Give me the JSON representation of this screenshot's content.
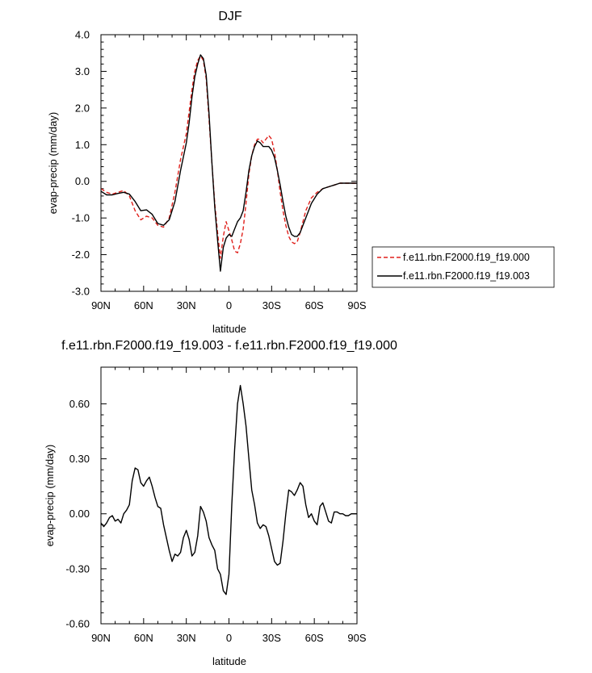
{
  "chart_data": [
    {
      "type": "line",
      "title": "DJF",
      "xlabel": "latitude",
      "ylabel": "evap-precip (mm/day)",
      "xlim": [
        90,
        -90
      ],
      "ylim": [
        -3.0,
        4.0
      ],
      "xticks": [
        {
          "value": 90,
          "label": "90N"
        },
        {
          "value": 60,
          "label": "60N"
        },
        {
          "value": 30,
          "label": "30N"
        },
        {
          "value": 0,
          "label": "0"
        },
        {
          "value": -30,
          "label": "30S"
        },
        {
          "value": -60,
          "label": "60S"
        },
        {
          "value": -90,
          "label": "90S"
        }
      ],
      "yticks": [
        {
          "value": 4.0,
          "label": "4.0"
        },
        {
          "value": 3.0,
          "label": "3.0"
        },
        {
          "value": 2.0,
          "label": "2.0"
        },
        {
          "value": 1.0,
          "label": "1.0"
        },
        {
          "value": 0.0,
          "label": "0.0"
        },
        {
          "value": -1.0,
          "label": "-1.0"
        },
        {
          "value": -2.0,
          "label": "-2.0"
        },
        {
          "value": -3.0,
          "label": "-3.0"
        }
      ],
      "legend_position": "right",
      "series": [
        {
          "name": "f.e11.rbn.F2000.f19_f19.000",
          "color": "#e0201b",
          "dash": "dashed",
          "x": [
            90,
            86,
            82,
            78,
            74,
            70,
            66,
            62,
            58,
            54,
            50,
            46,
            42,
            38,
            34,
            30,
            28,
            26,
            24,
            22,
            20,
            18,
            16,
            14,
            12,
            10,
            8,
            6,
            4,
            2,
            0,
            -2,
            -4,
            -6,
            -8,
            -10,
            -12,
            -14,
            -16,
            -18,
            -20,
            -22,
            -24,
            -26,
            -28,
            -30,
            -32,
            -34,
            -36,
            -38,
            -40,
            -42,
            -44,
            -46,
            -48,
            -50,
            -54,
            -58,
            -62,
            -66,
            -70,
            -74,
            -78,
            -82,
            -86,
            -90
          ],
          "y": [
            -0.2,
            -0.3,
            -0.35,
            -0.3,
            -0.25,
            -0.4,
            -0.8,
            -1.05,
            -0.95,
            -1.0,
            -1.2,
            -1.25,
            -1.0,
            -0.3,
            0.6,
            1.3,
            1.9,
            2.5,
            3.0,
            3.3,
            3.42,
            3.3,
            2.8,
            1.7,
            0.5,
            -0.6,
            -1.4,
            -2.1,
            -1.5,
            -1.1,
            -1.35,
            -1.6,
            -1.9,
            -1.95,
            -1.7,
            -1.3,
            -0.6,
            0.2,
            0.7,
            1.0,
            1.15,
            1.15,
            1.05,
            1.15,
            1.25,
            1.15,
            0.8,
            0.3,
            -0.3,
            -0.8,
            -1.2,
            -1.5,
            -1.65,
            -1.7,
            -1.65,
            -1.4,
            -0.8,
            -0.45,
            -0.3,
            -0.2,
            -0.15,
            -0.1,
            -0.05,
            -0.05,
            -0.05,
            -0.05
          ]
        },
        {
          "name": "f.e11.rbn.F2000.f19_f19.003",
          "color": "#000000",
          "dash": "solid",
          "x": [
            90,
            86,
            82,
            78,
            74,
            70,
            66,
            62,
            58,
            54,
            50,
            46,
            42,
            38,
            34,
            30,
            28,
            26,
            24,
            22,
            20,
            18,
            16,
            14,
            12,
            10,
            8,
            6,
            4,
            2,
            0,
            -2,
            -4,
            -6,
            -8,
            -10,
            -12,
            -14,
            -16,
            -18,
            -20,
            -22,
            -24,
            -26,
            -28,
            -30,
            -32,
            -34,
            -36,
            -38,
            -40,
            -42,
            -44,
            -46,
            -48,
            -50,
            -54,
            -58,
            -62,
            -66,
            -70,
            -74,
            -78,
            -82,
            -86,
            -90
          ],
          "y": [
            -0.27,
            -0.37,
            -0.37,
            -0.33,
            -0.3,
            -0.35,
            -0.55,
            -0.8,
            -0.78,
            -0.9,
            -1.15,
            -1.2,
            -1.05,
            -0.55,
            0.3,
            1.05,
            1.6,
            2.3,
            2.85,
            3.2,
            3.45,
            3.35,
            2.9,
            1.85,
            0.5,
            -0.7,
            -1.6,
            -2.45,
            -1.8,
            -1.55,
            -1.45,
            -1.5,
            -1.3,
            -1.1,
            -1.0,
            -0.8,
            -0.3,
            0.3,
            0.7,
            0.95,
            1.1,
            1.05,
            0.95,
            0.95,
            0.95,
            0.85,
            0.65,
            0.3,
            -0.1,
            -0.55,
            -0.95,
            -1.25,
            -1.45,
            -1.5,
            -1.5,
            -1.4,
            -1.0,
            -0.6,
            -0.35,
            -0.2,
            -0.15,
            -0.1,
            -0.05,
            -0.05,
            -0.05,
            -0.05
          ]
        }
      ]
    },
    {
      "type": "line",
      "title": "f.e11.rbn.F2000.f19_f19.003 - f.e11.rbn.F2000.f19_f19.000",
      "xlabel": "latitude",
      "ylabel": "evap-precip (mm/day)",
      "xlim": [
        90,
        -90
      ],
      "ylim": [
        -0.6,
        0.8
      ],
      "xticks": [
        {
          "value": 90,
          "label": "90N"
        },
        {
          "value": 60,
          "label": "60N"
        },
        {
          "value": 30,
          "label": "30N"
        },
        {
          "value": 0,
          "label": "0"
        },
        {
          "value": -30,
          "label": "30S"
        },
        {
          "value": -60,
          "label": "60S"
        },
        {
          "value": -90,
          "label": "90S"
        }
      ],
      "yticks": [
        {
          "value": 0.6,
          "label": "0.60"
        },
        {
          "value": 0.3,
          "label": "0.30"
        },
        {
          "value": 0.0,
          "label": "0.00"
        },
        {
          "value": -0.3,
          "label": "-0.30"
        },
        {
          "value": -0.6,
          "label": "-0.60"
        }
      ],
      "series": [
        {
          "color": "#000000",
          "dash": "solid",
          "x": [
            90,
            88,
            86,
            84,
            82,
            80,
            78,
            76,
            74,
            72,
            70,
            68,
            66,
            64,
            62,
            60,
            58,
            56,
            54,
            52,
            50,
            48,
            46,
            44,
            42,
            40,
            38,
            36,
            34,
            32,
            30,
            28,
            26,
            24,
            22,
            20,
            18,
            16,
            14,
            12,
            10,
            8,
            6,
            4,
            2,
            0,
            -2,
            -4,
            -6,
            -8,
            -10,
            -12,
            -14,
            -16,
            -18,
            -20,
            -22,
            -24,
            -26,
            -28,
            -30,
            -32,
            -34,
            -36,
            -38,
            -40,
            -42,
            -44,
            -46,
            -48,
            -50,
            -52,
            -54,
            -56,
            -58,
            -60,
            -62,
            -64,
            -66,
            -68,
            -70,
            -72,
            -74,
            -76,
            -78,
            -80,
            -82,
            -84,
            -86,
            -88,
            -90
          ],
          "y": [
            -0.05,
            -0.07,
            -0.05,
            -0.02,
            -0.01,
            -0.04,
            -0.03,
            -0.05,
            0.0,
            0.02,
            0.05,
            0.18,
            0.25,
            0.24,
            0.17,
            0.15,
            0.18,
            0.2,
            0.15,
            0.09,
            0.04,
            0.03,
            -0.06,
            -0.13,
            -0.2,
            -0.26,
            -0.22,
            -0.23,
            -0.21,
            -0.13,
            -0.09,
            -0.14,
            -0.23,
            -0.21,
            -0.12,
            0.04,
            0.01,
            -0.04,
            -0.13,
            -0.17,
            -0.2,
            -0.3,
            -0.33,
            -0.42,
            -0.44,
            -0.33,
            0.05,
            0.35,
            0.6,
            0.7,
            0.6,
            0.48,
            0.3,
            0.13,
            0.05,
            -0.05,
            -0.08,
            -0.06,
            -0.07,
            -0.12,
            -0.19,
            -0.26,
            -0.28,
            -0.27,
            -0.15,
            0.0,
            0.13,
            0.12,
            0.1,
            0.13,
            0.17,
            0.15,
            0.05,
            -0.02,
            0.0,
            -0.04,
            -0.06,
            0.04,
            0.06,
            0.01,
            -0.04,
            -0.05,
            0.01,
            0.01,
            0.0,
            0.0,
            -0.01,
            -0.01,
            0.0,
            0.0,
            0.0
          ]
        }
      ]
    }
  ]
}
